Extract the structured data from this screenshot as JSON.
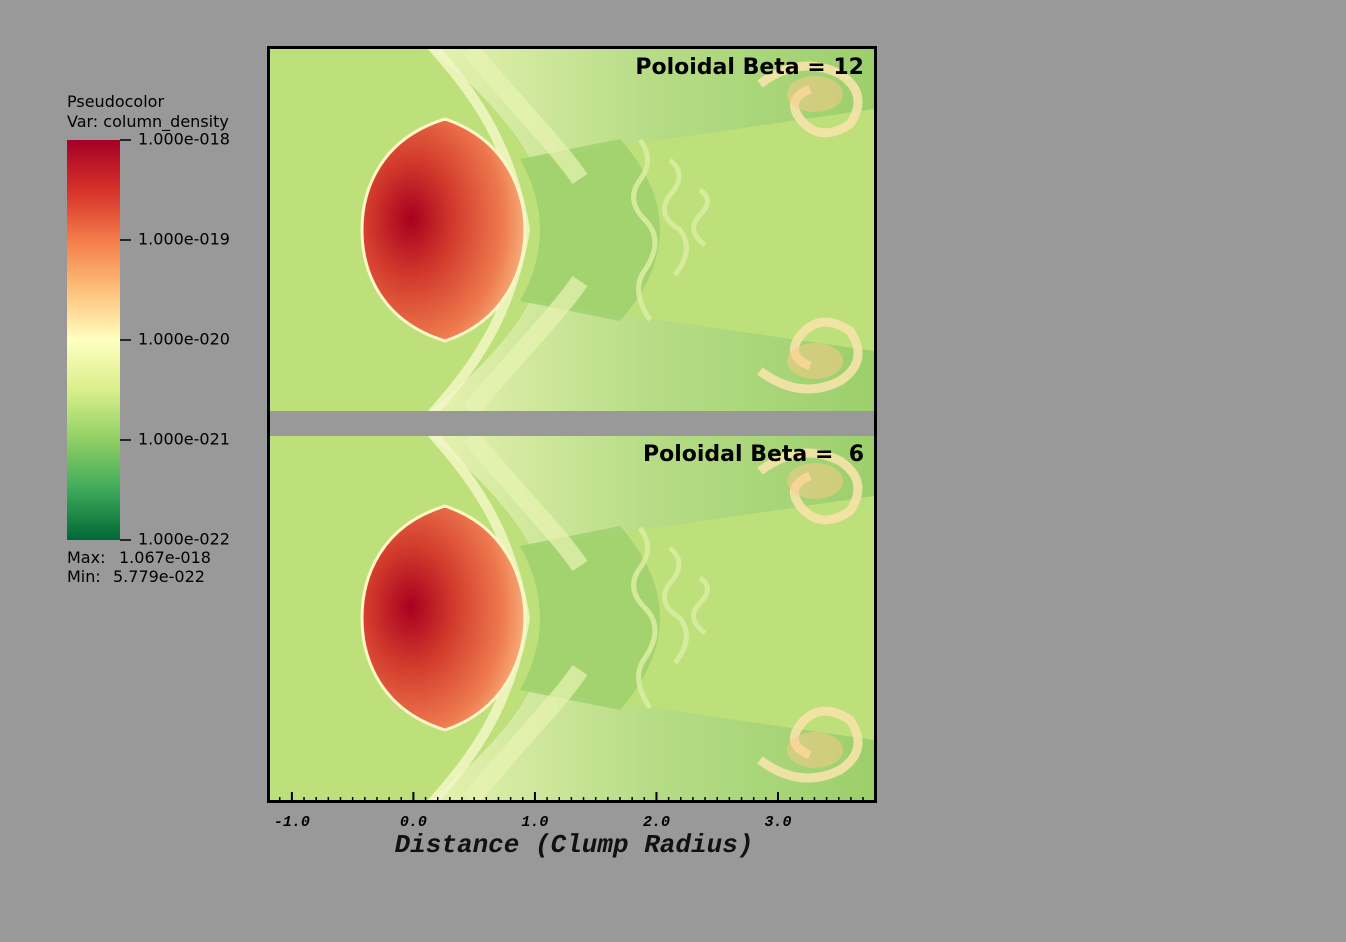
{
  "chart_data": {
    "type": "image",
    "legend": {
      "title": "Pseudocolor",
      "variable": "Var: column_density",
      "clim": [
        1e-22,
        1e-18
      ],
      "log": true,
      "colormap": [
        "#006837",
        "#3ea95a",
        "#8fcf65",
        "#d9ef8b",
        "#ffffbf",
        "#fdc07a",
        "#f47c4a",
        "#d6312a",
        "#a50026"
      ],
      "ticks": [
        {
          "value": 1e-18,
          "label": "1.000e-018"
        },
        {
          "value": 1e-19,
          "label": "1.000e-019"
        },
        {
          "value": 1e-20,
          "label": "1.000e-020"
        },
        {
          "value": 1e-21,
          "label": "1.000e-021"
        },
        {
          "value": 1e-22,
          "label": "1.000e-022"
        }
      ],
      "max_title": "Max:",
      "max": {
        "value": 1.067e-18,
        "label": "1.067e-018"
      },
      "min_title": "Min:",
      "min": {
        "value": 5.779e-22,
        "label": "5.779e-022"
      }
    },
    "xlabel": "Distance (Clump Radius)",
    "xlim": [
      -1.18,
      3.79
    ],
    "xticks": [
      {
        "value": -1,
        "label": "-1.0"
      },
      {
        "value": 0,
        "label": "0.0"
      },
      {
        "value": 1,
        "label": "1.0"
      },
      {
        "value": 2,
        "label": "2.0"
      },
      {
        "value": 3,
        "label": "3.0"
      }
    ],
    "panels": [
      {
        "annotation": "Poloidal Beta = 12"
      },
      {
        "annotation": "Poloidal Beta =  6"
      }
    ]
  }
}
